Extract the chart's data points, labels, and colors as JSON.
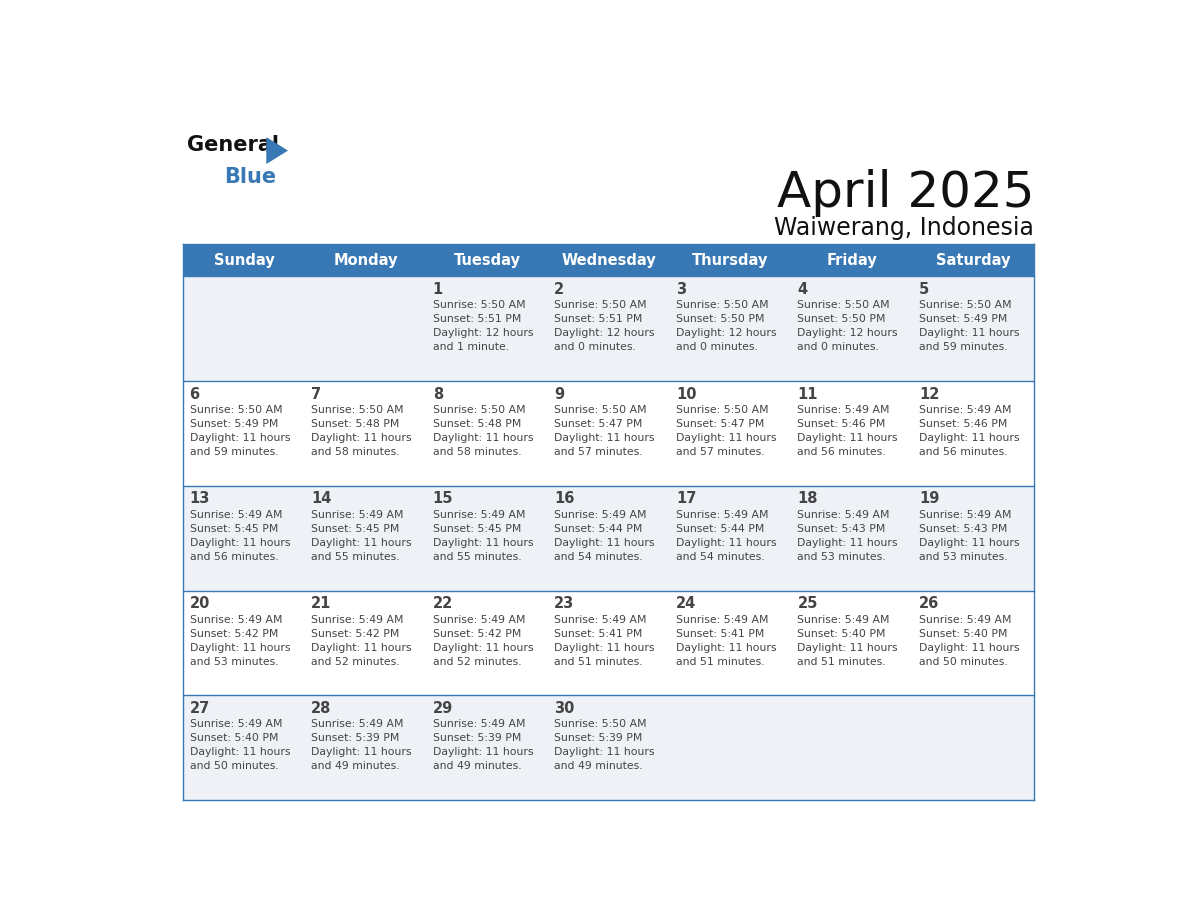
{
  "title": "April 2025",
  "subtitle": "Waiwerang, Indonesia",
  "header_bg": "#3878b4",
  "header_text": "#ffffff",
  "cell_bg_odd": "#eef2f7",
  "cell_bg_even": "#ffffff",
  "row_sep_color": "#3878b4",
  "text_color": "#444444",
  "days_of_week": [
    "Sunday",
    "Monday",
    "Tuesday",
    "Wednesday",
    "Thursday",
    "Friday",
    "Saturday"
  ],
  "calendar": [
    [
      {
        "day": "",
        "info": ""
      },
      {
        "day": "",
        "info": ""
      },
      {
        "day": "1",
        "info": "Sunrise: 5:50 AM\nSunset: 5:51 PM\nDaylight: 12 hours\nand 1 minute."
      },
      {
        "day": "2",
        "info": "Sunrise: 5:50 AM\nSunset: 5:51 PM\nDaylight: 12 hours\nand 0 minutes."
      },
      {
        "day": "3",
        "info": "Sunrise: 5:50 AM\nSunset: 5:50 PM\nDaylight: 12 hours\nand 0 minutes."
      },
      {
        "day": "4",
        "info": "Sunrise: 5:50 AM\nSunset: 5:50 PM\nDaylight: 12 hours\nand 0 minutes."
      },
      {
        "day": "5",
        "info": "Sunrise: 5:50 AM\nSunset: 5:49 PM\nDaylight: 11 hours\nand 59 minutes."
      }
    ],
    [
      {
        "day": "6",
        "info": "Sunrise: 5:50 AM\nSunset: 5:49 PM\nDaylight: 11 hours\nand 59 minutes."
      },
      {
        "day": "7",
        "info": "Sunrise: 5:50 AM\nSunset: 5:48 PM\nDaylight: 11 hours\nand 58 minutes."
      },
      {
        "day": "8",
        "info": "Sunrise: 5:50 AM\nSunset: 5:48 PM\nDaylight: 11 hours\nand 58 minutes."
      },
      {
        "day": "9",
        "info": "Sunrise: 5:50 AM\nSunset: 5:47 PM\nDaylight: 11 hours\nand 57 minutes."
      },
      {
        "day": "10",
        "info": "Sunrise: 5:50 AM\nSunset: 5:47 PM\nDaylight: 11 hours\nand 57 minutes."
      },
      {
        "day": "11",
        "info": "Sunrise: 5:49 AM\nSunset: 5:46 PM\nDaylight: 11 hours\nand 56 minutes."
      },
      {
        "day": "12",
        "info": "Sunrise: 5:49 AM\nSunset: 5:46 PM\nDaylight: 11 hours\nand 56 minutes."
      }
    ],
    [
      {
        "day": "13",
        "info": "Sunrise: 5:49 AM\nSunset: 5:45 PM\nDaylight: 11 hours\nand 56 minutes."
      },
      {
        "day": "14",
        "info": "Sunrise: 5:49 AM\nSunset: 5:45 PM\nDaylight: 11 hours\nand 55 minutes."
      },
      {
        "day": "15",
        "info": "Sunrise: 5:49 AM\nSunset: 5:45 PM\nDaylight: 11 hours\nand 55 minutes."
      },
      {
        "day": "16",
        "info": "Sunrise: 5:49 AM\nSunset: 5:44 PM\nDaylight: 11 hours\nand 54 minutes."
      },
      {
        "day": "17",
        "info": "Sunrise: 5:49 AM\nSunset: 5:44 PM\nDaylight: 11 hours\nand 54 minutes."
      },
      {
        "day": "18",
        "info": "Sunrise: 5:49 AM\nSunset: 5:43 PM\nDaylight: 11 hours\nand 53 minutes."
      },
      {
        "day": "19",
        "info": "Sunrise: 5:49 AM\nSunset: 5:43 PM\nDaylight: 11 hours\nand 53 minutes."
      }
    ],
    [
      {
        "day": "20",
        "info": "Sunrise: 5:49 AM\nSunset: 5:42 PM\nDaylight: 11 hours\nand 53 minutes."
      },
      {
        "day": "21",
        "info": "Sunrise: 5:49 AM\nSunset: 5:42 PM\nDaylight: 11 hours\nand 52 minutes."
      },
      {
        "day": "22",
        "info": "Sunrise: 5:49 AM\nSunset: 5:42 PM\nDaylight: 11 hours\nand 52 minutes."
      },
      {
        "day": "23",
        "info": "Sunrise: 5:49 AM\nSunset: 5:41 PM\nDaylight: 11 hours\nand 51 minutes."
      },
      {
        "day": "24",
        "info": "Sunrise: 5:49 AM\nSunset: 5:41 PM\nDaylight: 11 hours\nand 51 minutes."
      },
      {
        "day": "25",
        "info": "Sunrise: 5:49 AM\nSunset: 5:40 PM\nDaylight: 11 hours\nand 51 minutes."
      },
      {
        "day": "26",
        "info": "Sunrise: 5:49 AM\nSunset: 5:40 PM\nDaylight: 11 hours\nand 50 minutes."
      }
    ],
    [
      {
        "day": "27",
        "info": "Sunrise: 5:49 AM\nSunset: 5:40 PM\nDaylight: 11 hours\nand 50 minutes."
      },
      {
        "day": "28",
        "info": "Sunrise: 5:49 AM\nSunset: 5:39 PM\nDaylight: 11 hours\nand 49 minutes."
      },
      {
        "day": "29",
        "info": "Sunrise: 5:49 AM\nSunset: 5:39 PM\nDaylight: 11 hours\nand 49 minutes."
      },
      {
        "day": "30",
        "info": "Sunrise: 5:50 AM\nSunset: 5:39 PM\nDaylight: 11 hours\nand 49 minutes."
      },
      {
        "day": "",
        "info": ""
      },
      {
        "day": "",
        "info": ""
      },
      {
        "day": "",
        "info": ""
      }
    ]
  ]
}
